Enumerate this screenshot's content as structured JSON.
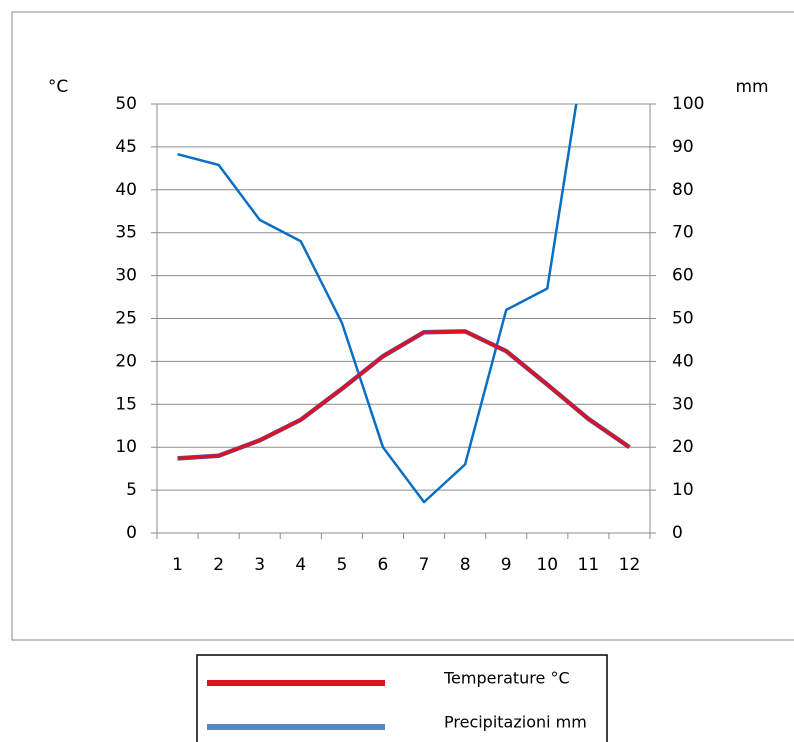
{
  "chart_data": {
    "type": "line",
    "y_label": "°C",
    "y2_label": "mm",
    "categories": [
      "1",
      "2",
      "3",
      "4",
      "5",
      "6",
      "7",
      "8",
      "9",
      "10",
      "11",
      "12"
    ],
    "series": [
      {
        "name": "Temperature °C",
        "color": "#e3101e",
        "values": [
          8.7,
          9.0,
          10.8,
          13.2,
          16.8,
          20.6,
          23.4,
          23.5,
          21.2,
          17.3,
          13.3,
          10.0
        ]
      },
      {
        "name": "Precipitazioni mm",
        "color": "#0a6fc2",
        "legend_color": "#5b86c0",
        "axis": "y2",
        "values": [
          88.3,
          85.8,
          73,
          68,
          49,
          20,
          7.2,
          16,
          52,
          57,
          118,
          null
        ]
      }
    ],
    "ylim": [
      0,
      50
    ],
    "yticks": [
      0,
      5,
      10,
      15,
      20,
      25,
      30,
      35,
      40,
      45,
      50
    ],
    "y2lim": [
      0,
      100
    ],
    "y2ticks": [
      0,
      10,
      20,
      30,
      40,
      50,
      60,
      70,
      80,
      90,
      100
    ],
    "grid": true,
    "legend": "bottom"
  }
}
